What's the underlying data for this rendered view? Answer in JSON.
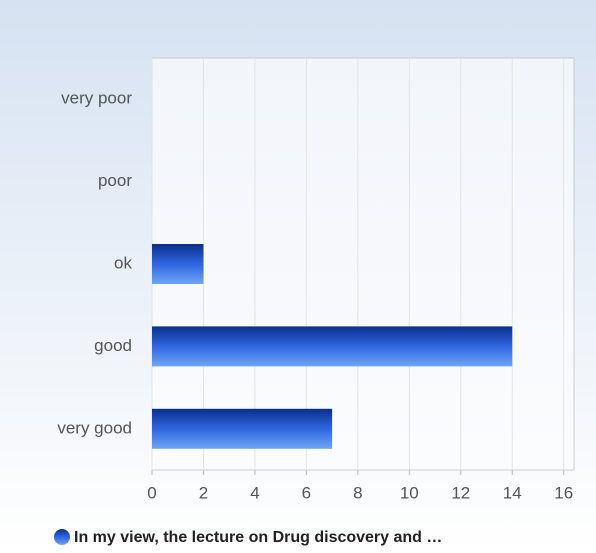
{
  "chart_data": {
    "type": "bar",
    "orientation": "horizontal",
    "categories": [
      "very poor",
      "poor",
      "ok",
      "good",
      "very good"
    ],
    "series": [
      {
        "name": "In my view, the lecture on Drug discovery and …",
        "color": "#2f66e0",
        "values": [
          0,
          0,
          2,
          14,
          7
        ]
      }
    ],
    "xlim": [
      0,
      16.4
    ],
    "xticks": [
      0,
      2,
      4,
      6,
      8,
      10,
      12,
      14,
      16
    ],
    "grid": true
  }
}
